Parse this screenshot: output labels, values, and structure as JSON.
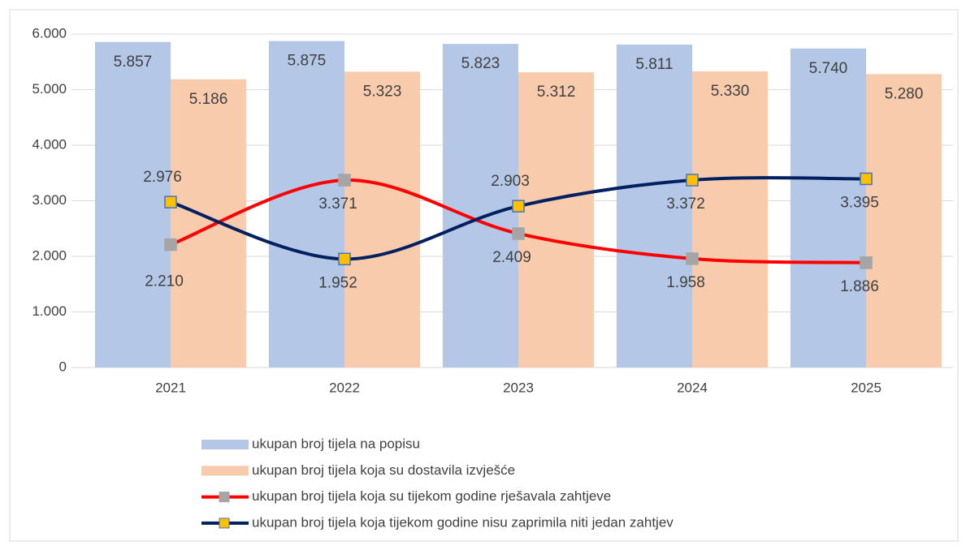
{
  "chart_data": {
    "type": "bar",
    "categories": [
      "2021",
      "2022",
      "2023",
      "2024",
      "2025"
    ],
    "series": [
      {
        "name": "ukupan broj tijela na popisu",
        "color": "#b4c7e7",
        "values": [
          5857,
          5875,
          5823,
          5811,
          5740
        ],
        "value_labels": [
          "5.857",
          "5.875",
          "5.823",
          "5.811",
          "5.740"
        ]
      },
      {
        "name": "ukupan broj tijela koja su dostavila izvješće",
        "color": "#f8cbad",
        "values": [
          5186,
          5323,
          5312,
          5330,
          5280
        ],
        "value_labels": [
          "5.186",
          "5.323",
          "5.312",
          "5.330",
          "5.280"
        ]
      },
      {
        "name": "ukupan broj tijela koja su tijekom godine rješavala zahtjeve",
        "type": "line",
        "color": "#ff0000",
        "marker_color": "#a5a5a5",
        "values": [
          2210,
          3371,
          2409,
          1958,
          1886
        ],
        "value_labels": [
          "2.210",
          "3.371",
          "2.409",
          "1.958",
          "1.886"
        ]
      },
      {
        "name": "ukupan broj tijela koja tijekom godine nisu zaprimila niti jedan zahtjev",
        "type": "line",
        "color": "#002060",
        "marker_color": "#ffc000",
        "values": [
          2976,
          1952,
          2903,
          3372,
          3395
        ],
        "value_labels": [
          "2.976",
          "1.952",
          "2.903",
          "3.372",
          "3.395"
        ]
      }
    ],
    "ylim": [
      0,
      6000
    ],
    "yticks": [
      0,
      {
        "value": 1000,
        "label": "1.000"
      },
      {
        "value": 2000,
        "label": "2.000"
      },
      {
        "value": 3000,
        "label": "3.000"
      },
      {
        "value": 4000,
        "label": "4.000"
      },
      {
        "value": 5000,
        "label": "5.000"
      },
      {
        "value": 6000,
        "label": "6.000"
      }
    ],
    "grid": true,
    "legend": "bottom"
  }
}
